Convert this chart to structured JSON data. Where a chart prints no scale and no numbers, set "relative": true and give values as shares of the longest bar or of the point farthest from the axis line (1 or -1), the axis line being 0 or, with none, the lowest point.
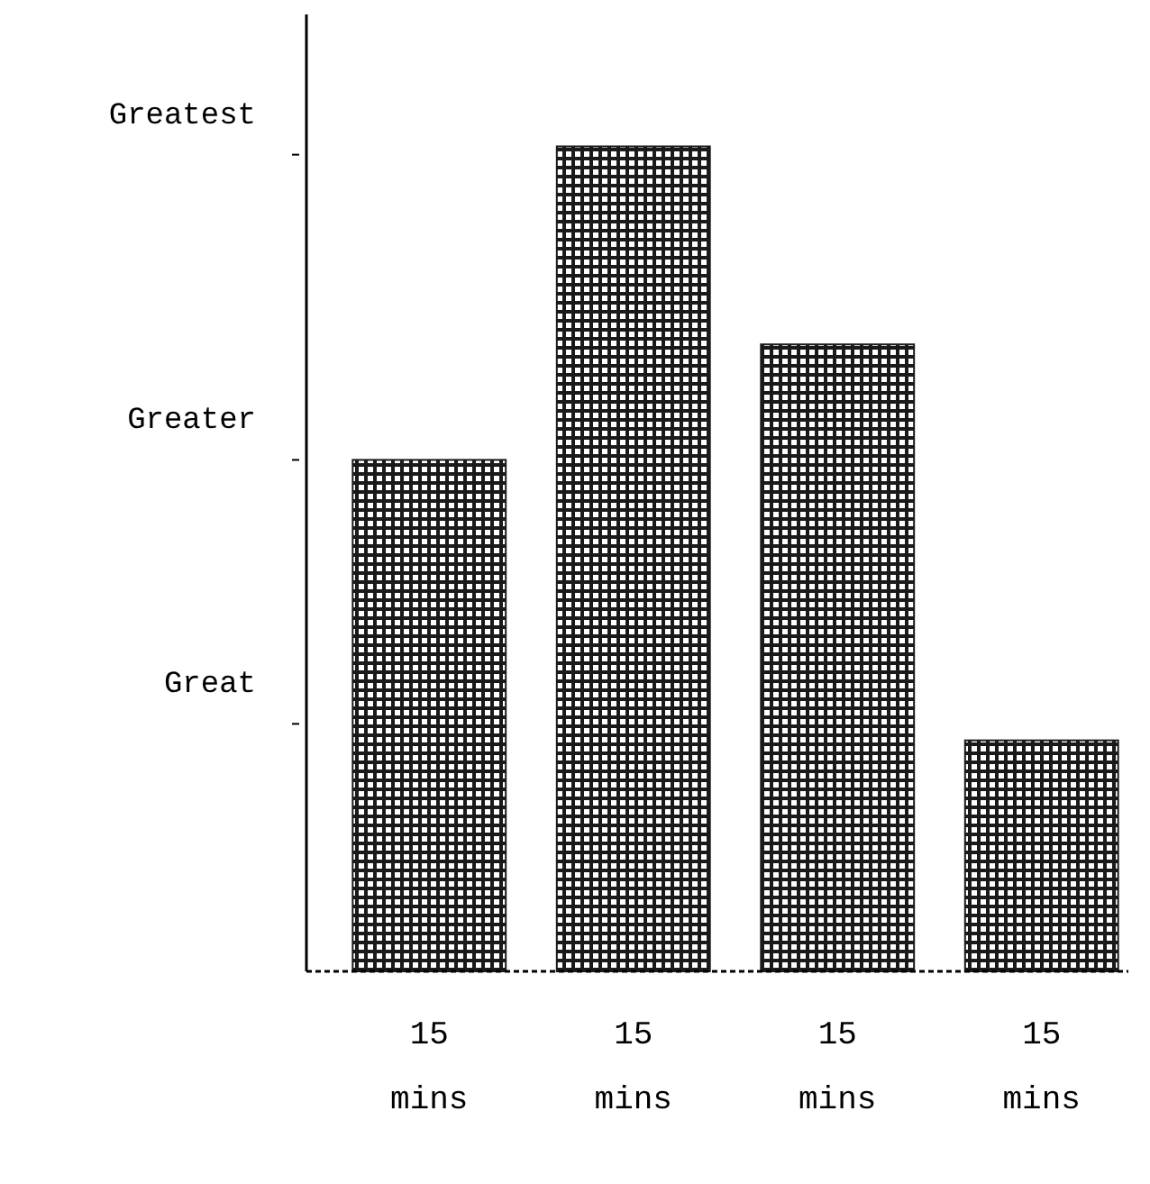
{
  "chart_data": {
    "type": "bar",
    "relative": true,
    "categories": [
      "15 mins",
      "15 mins",
      "15 mins",
      "15 mins"
    ],
    "values": [
      0.62,
      1,
      0.76,
      0.28
    ],
    "color": "#1a1a1a",
    "annotations": [
      "Greatest",
      "Greater",
      "Great"
    ]
  }
}
